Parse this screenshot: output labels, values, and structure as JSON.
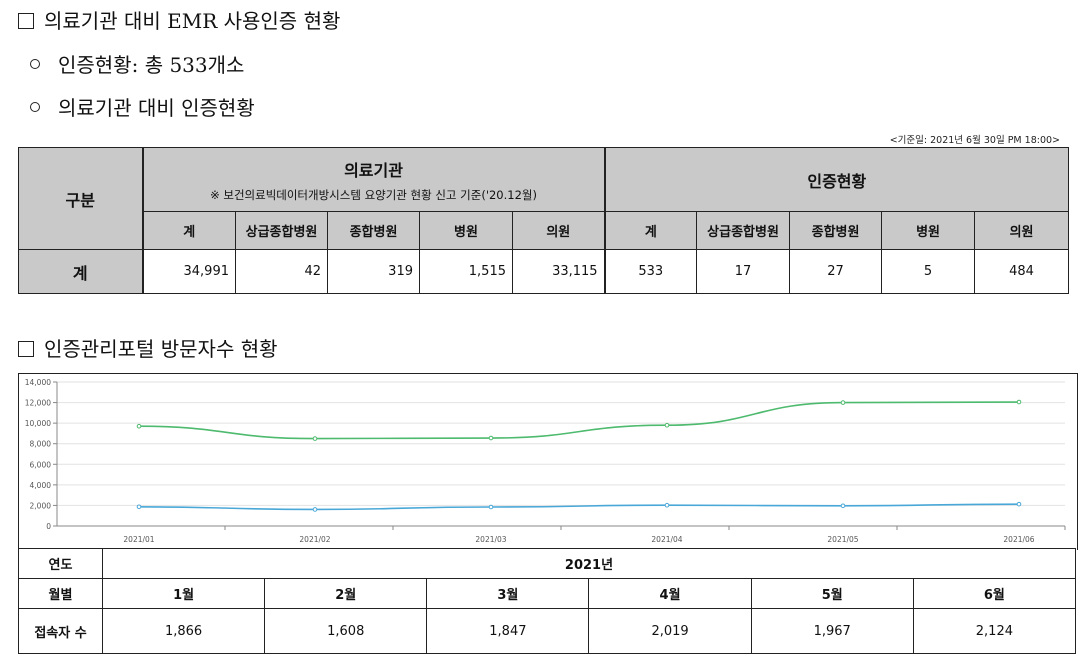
{
  "section1": {
    "title": "의료기관 대비 EMR 사용인증 현황",
    "bullet1": "인증현황: 총 533개소",
    "bullet2": "의료기관 대비 인증현황",
    "basis": "<기준일: 2021년 6월 30일 PM 18:00>",
    "table": {
      "col_group": "구분",
      "hospital_header": "의료기관",
      "hospital_note": "※ 보건의료빅데이터개방시스템 요양기관 현황 신고 기준('20.12월)",
      "cert_header": "인증현황",
      "subheaders": [
        "계",
        "상급종합병원",
        "종합병원",
        "병원",
        "의원",
        "계",
        "상급종합병원",
        "종합병원",
        "병원",
        "의원"
      ],
      "row_label": "계",
      "hospital_values": [
        "34,991",
        "42",
        "319",
        "1,515",
        "33,115"
      ],
      "cert_values": [
        "533",
        "17",
        "27",
        "5",
        "484"
      ]
    }
  },
  "section2": {
    "title": "인증관리포털 방문자수 현황",
    "table": {
      "year_label": "연도",
      "year_value": "2021년",
      "month_label": "월별",
      "months": [
        "1월",
        "2월",
        "3월",
        "4월",
        "5월",
        "6월"
      ],
      "visitors_label": "접속자 수",
      "visitors": [
        "1,866",
        "1,608",
        "1,847",
        "2,019",
        "1,967",
        "2,124"
      ]
    }
  },
  "chart_data": {
    "type": "line",
    "x": [
      "2021/01",
      "2021/02",
      "2021/03",
      "2021/04",
      "2021/05",
      "2021/06"
    ],
    "yticks": [
      "14,000",
      "12,000",
      "10,000",
      "8,000",
      "6,000",
      "4,000",
      "2,000",
      "0"
    ],
    "ylim": [
      0,
      14000
    ],
    "grid": true,
    "series": [
      {
        "values": [
          9700,
          8500,
          8550,
          9800,
          12000,
          12050
        ],
        "color": "#4dba6e"
      },
      {
        "values": [
          1866,
          1608,
          1847,
          2019,
          1967,
          2124
        ],
        "color": "#4aa8d8"
      }
    ]
  }
}
